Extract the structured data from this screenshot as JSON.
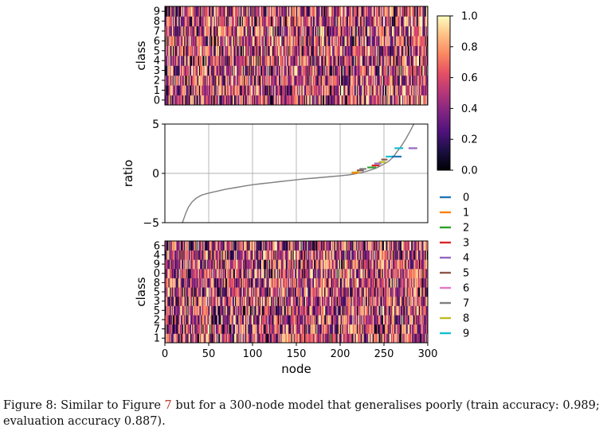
{
  "chart_data": {
    "type": "heatmap",
    "colormap": "magma",
    "x_range": [
      0,
      300
    ],
    "colorbar": {
      "range": [
        0.0,
        1.0
      ],
      "ticks": [
        "0.0",
        "0.2",
        "0.4",
        "0.6",
        "0.8",
        "1.0"
      ]
    },
    "top_heatmap": {
      "ylabel": "class",
      "rows": [
        "0",
        "1",
        "2",
        "3",
        "4",
        "5",
        "6",
        "7",
        "8",
        "9"
      ],
      "seed": 11
    },
    "ratio_plot": {
      "type": "line",
      "ylabel": "ratio",
      "ylim": [
        -5,
        5
      ],
      "yticks": [
        "−5",
        "0",
        "5"
      ],
      "grid": true,
      "line_color": "#7f7f7f",
      "curve": [
        [
          20,
          -5.0
        ],
        [
          22,
          -4.5
        ],
        [
          24,
          -4.0
        ],
        [
          27,
          -3.4
        ],
        [
          31,
          -2.9
        ],
        [
          36,
          -2.5
        ],
        [
          42,
          -2.2
        ],
        [
          50,
          -2.0
        ],
        [
          60,
          -1.8
        ],
        [
          70,
          -1.6
        ],
        [
          80,
          -1.45
        ],
        [
          90,
          -1.3
        ],
        [
          100,
          -1.15
        ],
        [
          110,
          -1.05
        ],
        [
          120,
          -0.95
        ],
        [
          130,
          -0.85
        ],
        [
          140,
          -0.75
        ],
        [
          150,
          -0.65
        ],
        [
          160,
          -0.55
        ],
        [
          170,
          -0.48
        ],
        [
          180,
          -0.4
        ],
        [
          190,
          -0.32
        ],
        [
          200,
          -0.25
        ],
        [
          210,
          -0.15
        ],
        [
          215,
          -0.08
        ],
        [
          220,
          0.0
        ],
        [
          225,
          0.1
        ],
        [
          230,
          0.2
        ],
        [
          235,
          0.35
        ],
        [
          240,
          0.5
        ],
        [
          245,
          0.7
        ],
        [
          250,
          0.95
        ],
        [
          255,
          1.2
        ],
        [
          260,
          1.6
        ],
        [
          265,
          2.2
        ],
        [
          270,
          2.8
        ],
        [
          275,
          3.5
        ],
        [
          280,
          4.3
        ],
        [
          284,
          5.0
        ]
      ],
      "segments": [
        {
          "cls": "8",
          "x": [
            213,
            222
          ],
          "y": 0.1
        },
        {
          "cls": "1",
          "x": [
            214,
            221
          ],
          "y": 0.05
        },
        {
          "cls": "5",
          "x": [
            219,
            227
          ],
          "y": 0.3
        },
        {
          "cls": "7",
          "x": [
            222,
            230
          ],
          "y": 0.45
        },
        {
          "cls": "2",
          "x": [
            231,
            241
          ],
          "y": 0.6
        },
        {
          "cls": "3",
          "x": [
            236,
            245
          ],
          "y": 0.8
        },
        {
          "cls": "4",
          "x": [
            239,
            247
          ],
          "y": 1.0
        },
        {
          "cls": "8",
          "x": [
            244,
            252
          ],
          "y": 1.15
        },
        {
          "cls": "5",
          "x": [
            247,
            254
          ],
          "y": 1.4
        },
        {
          "cls": "9",
          "x": [
            252,
            262
          ],
          "y": 1.7
        },
        {
          "cls": "0",
          "x": [
            259,
            270
          ],
          "y": 1.7
        },
        {
          "cls": "9",
          "x": [
            262,
            272
          ],
          "y": 2.55
        },
        {
          "cls": "4",
          "x": [
            278,
            288
          ],
          "y": 2.55
        }
      ]
    },
    "legend": {
      "placement": "right",
      "entries": [
        {
          "label": "0",
          "color": "#1f77b4"
        },
        {
          "label": "1",
          "color": "#ff7f0e"
        },
        {
          "label": "2",
          "color": "#2ca02c"
        },
        {
          "label": "3",
          "color": "#d62728"
        },
        {
          "label": "4",
          "color": "#9467bd"
        },
        {
          "label": "5",
          "color": "#8c564b"
        },
        {
          "label": "6",
          "color": "#e377c2"
        },
        {
          "label": "7",
          "color": "#7f7f7f"
        },
        {
          "label": "8",
          "color": "#bcbd22"
        },
        {
          "label": "9",
          "color": "#17becf"
        }
      ]
    },
    "bottom_heatmap": {
      "ylabel": "class",
      "rows": [
        "1",
        "7",
        "2",
        "5",
        "3",
        "5",
        "8",
        "0",
        "9",
        "4",
        "6"
      ],
      "seed": 29
    },
    "xticks": [
      "0",
      "50",
      "100",
      "150",
      "200",
      "250",
      "300"
    ],
    "xlabel": "node"
  },
  "caption": {
    "prefix": "Figure 8: Similar to Figure ",
    "ref": "7",
    "suffix": " but for a 300-node model that generalises poorly (train accuracy: 0.989; evaluation accuracy 0.887)."
  }
}
